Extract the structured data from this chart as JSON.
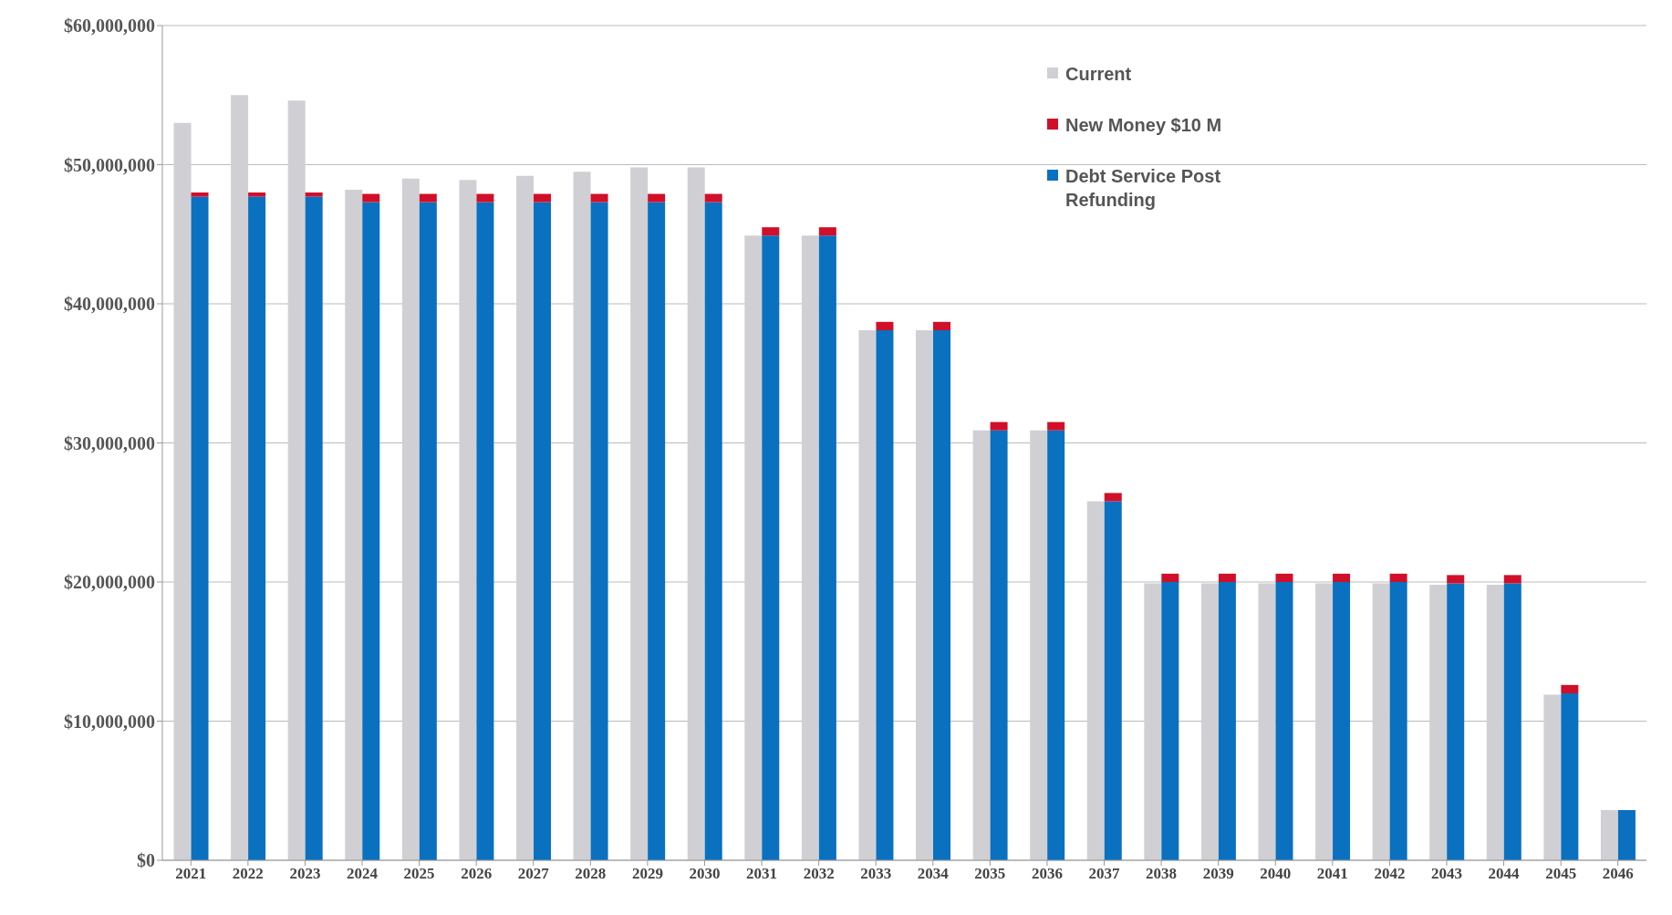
{
  "chart_data": {
    "type": "bar",
    "categories": [
      "2021",
      "2022",
      "2023",
      "2024",
      "2025",
      "2026",
      "2027",
      "2028",
      "2029",
      "2030",
      "2031",
      "2032",
      "2033",
      "2034",
      "2035",
      "2036",
      "2037",
      "2038",
      "2039",
      "2040",
      "2041",
      "2042",
      "2043",
      "2044",
      "2045",
      "2046"
    ],
    "series": [
      {
        "name": "Current",
        "color": "#d0d0d4",
        "values": [
          53000000,
          55000000,
          54600000,
          48200000,
          49000000,
          48900000,
          49200000,
          49500000,
          49800000,
          49800000,
          44900000,
          44900000,
          38100000,
          38100000,
          30900000,
          30900000,
          25800000,
          19900000,
          19900000,
          19900000,
          19900000,
          19900000,
          19800000,
          19800000,
          11900000,
          3600000
        ]
      },
      {
        "name": "New Money $10 M",
        "color": "#d0102a",
        "values": [
          300000,
          300000,
          300000,
          600000,
          600000,
          600000,
          600000,
          600000,
          600000,
          600000,
          600000,
          600000,
          600000,
          600000,
          600000,
          600000,
          600000,
          600000,
          600000,
          600000,
          600000,
          600000,
          600000,
          600000,
          600000,
          null
        ],
        "base": [
          47700000,
          47700000,
          47700000,
          47300000,
          47300000,
          47300000,
          47300000,
          47300000,
          47300000,
          47300000,
          44900000,
          44900000,
          38100000,
          38100000,
          30900000,
          30900000,
          25800000,
          20000000,
          20000000,
          20000000,
          20000000,
          20000000,
          19900000,
          19900000,
          12000000,
          null
        ]
      },
      {
        "name": "Debt Service Post Refunding",
        "color": "#0a70c0",
        "values": [
          47700000,
          47700000,
          47700000,
          47300000,
          47300000,
          47300000,
          47300000,
          47300000,
          47300000,
          47300000,
          44900000,
          44900000,
          38100000,
          38100000,
          30900000,
          30900000,
          25800000,
          20000000,
          20000000,
          20000000,
          20000000,
          20000000,
          19900000,
          19900000,
          12000000,
          3600000
        ]
      }
    ],
    "ylim": [
      0,
      60000000
    ],
    "yticks": [
      {
        "value": 0,
        "label": "$0"
      },
      {
        "value": 10000000,
        "label": "$10,000,000"
      },
      {
        "value": 20000000,
        "label": "$20,000,000"
      },
      {
        "value": 30000000,
        "label": "$30,000,000"
      },
      {
        "value": 40000000,
        "label": "$40,000,000"
      },
      {
        "value": 50000000,
        "label": "$50,000,000"
      },
      {
        "value": 60000000,
        "label": "$60,000,000"
      }
    ],
    "grid": "y",
    "legend": "top right"
  }
}
